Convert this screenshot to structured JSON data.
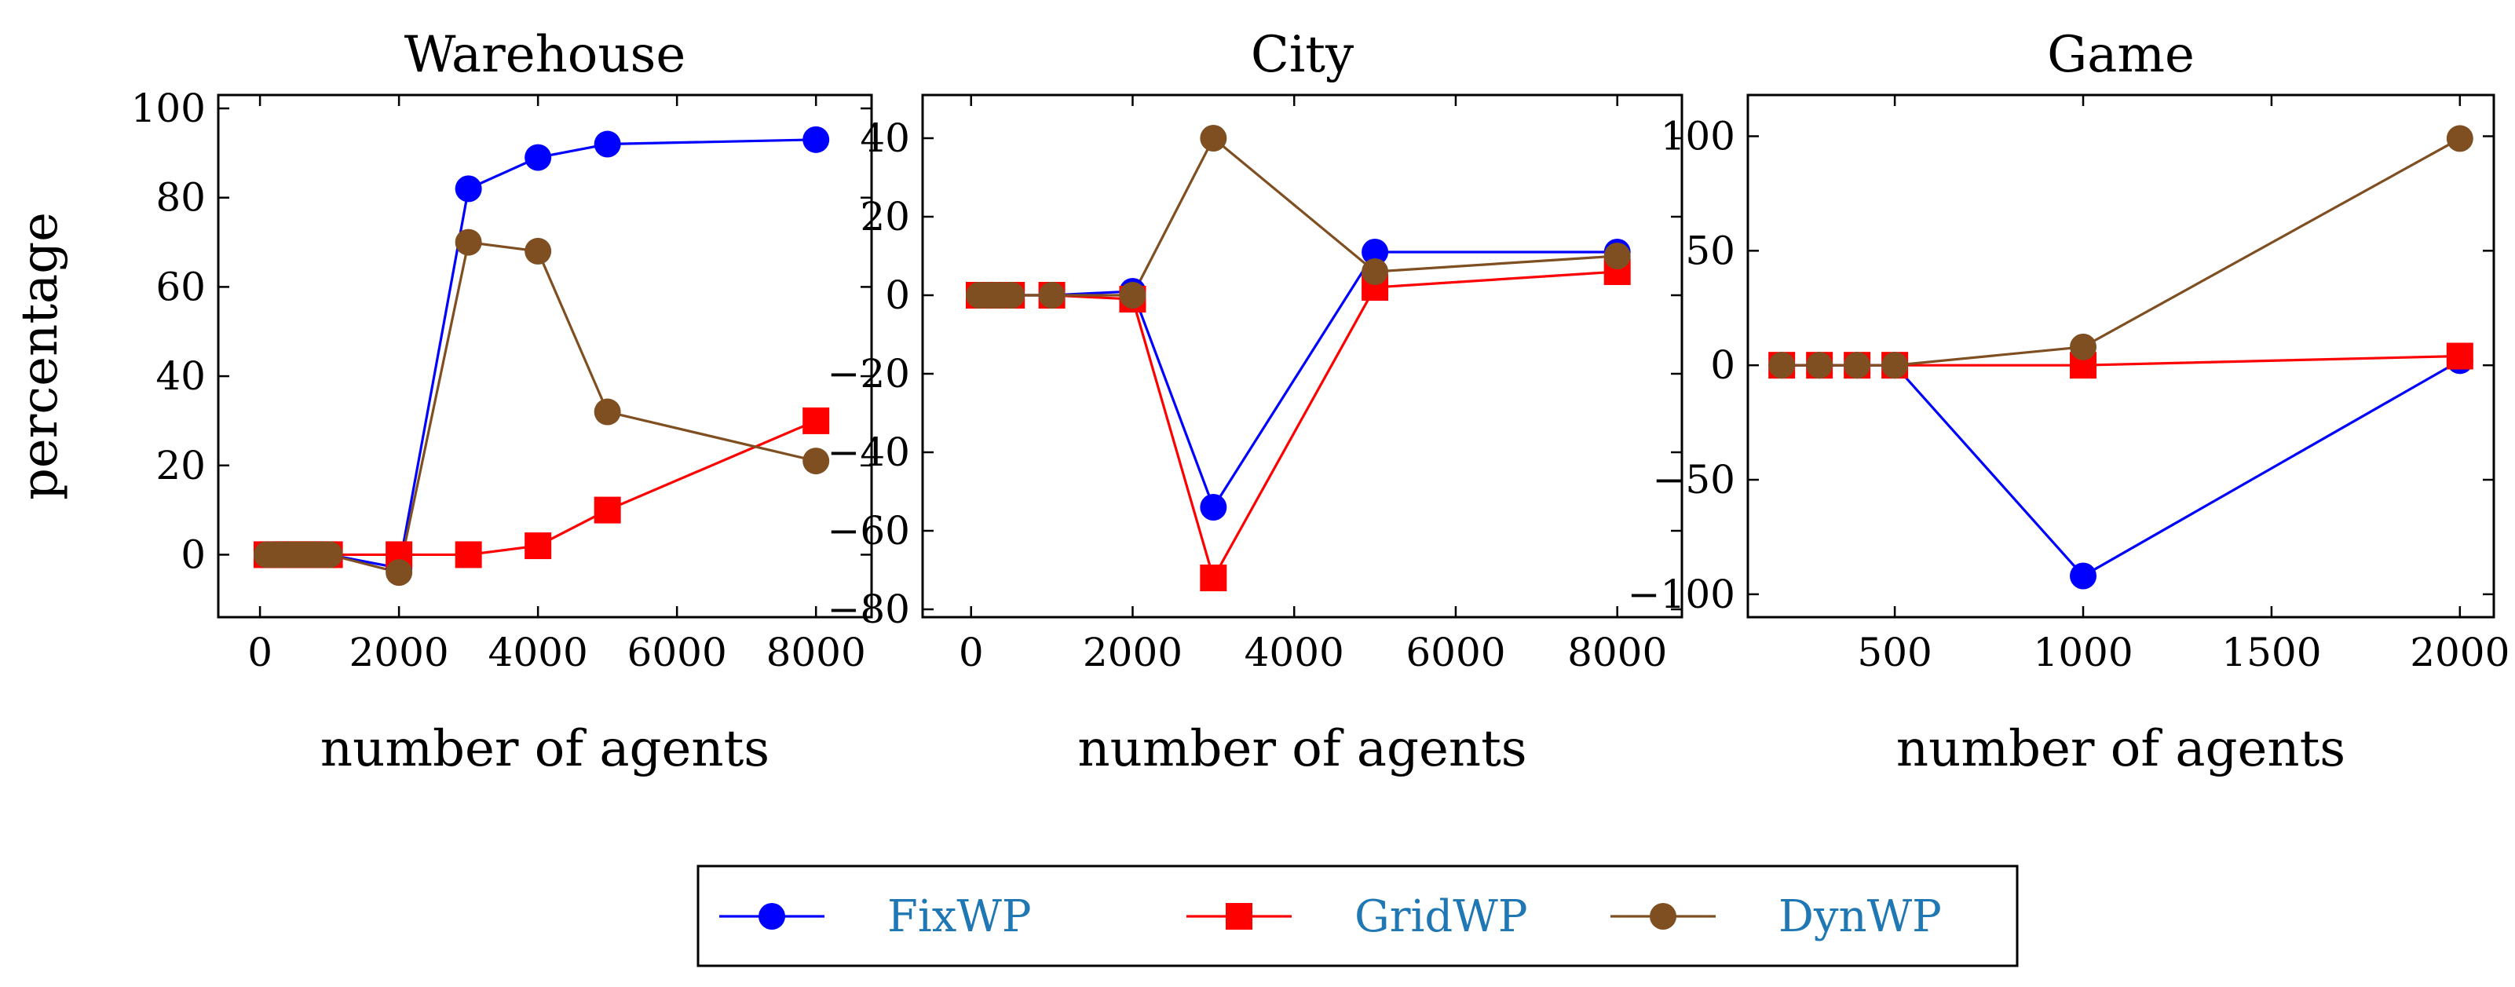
{
  "chart_data": [
    {
      "type": "line",
      "title": "Warehouse",
      "xlabel": "number of agents",
      "ylabel": "percentage",
      "xlim": [
        -600,
        8800
      ],
      "ylim": [
        -14,
        103
      ],
      "xticks": [
        0,
        2000,
        4000,
        6000,
        8000
      ],
      "yticks": [
        0,
        20,
        40,
        60,
        80,
        100
      ],
      "x": [
        100,
        200,
        300,
        400,
        500,
        600,
        700,
        800,
        900,
        1000,
        2000,
        3000,
        4000,
        5000,
        8000
      ],
      "series": [
        {
          "name": "FixWP",
          "values": [
            0,
            0,
            0,
            0,
            0,
            0,
            0,
            0,
            0,
            0,
            -3,
            82,
            89,
            92,
            93
          ]
        },
        {
          "name": "GridWP",
          "values": [
            0,
            0,
            0,
            0,
            0,
            0,
            0,
            0,
            0,
            0,
            0,
            0,
            2,
            10,
            30
          ]
        },
        {
          "name": "DynWP",
          "values": [
            0,
            0,
            0,
            0,
            0,
            0,
            0,
            0,
            0,
            0,
            -4,
            70,
            68,
            32,
            21
          ]
        }
      ]
    },
    {
      "type": "line",
      "title": "City",
      "xlabel": "number of agents",
      "ylabel": "",
      "xlim": [
        -600,
        8800
      ],
      "ylim": [
        -82,
        51
      ],
      "xticks": [
        0,
        2000,
        4000,
        6000,
        8000
      ],
      "yticks": [
        -80,
        -60,
        -40,
        -20,
        0,
        20,
        40
      ],
      "x": [
        100,
        200,
        300,
        400,
        500,
        1000,
        2000,
        3000,
        5000,
        8000
      ],
      "series": [
        {
          "name": "FixWP",
          "values": [
            0,
            0,
            0,
            0,
            0,
            0,
            1,
            -54,
            11,
            11
          ]
        },
        {
          "name": "GridWP",
          "values": [
            0,
            0,
            0,
            0,
            0,
            0,
            -1,
            -72,
            2,
            6
          ]
        },
        {
          "name": "DynWP",
          "values": [
            0,
            0,
            0,
            0,
            0,
            0,
            0,
            40,
            6,
            10
          ]
        }
      ]
    },
    {
      "type": "line",
      "title": "Game",
      "xlabel": "number of agents",
      "ylabel": "",
      "xlim": [
        110,
        2090
      ],
      "ylim": [
        -110,
        118
      ],
      "xticks": [
        500,
        1000,
        1500,
        2000
      ],
      "yticks": [
        -100,
        -50,
        0,
        50,
        100
      ],
      "x": [
        200,
        300,
        400,
        500,
        1000,
        2000
      ],
      "series": [
        {
          "name": "FixWP",
          "values": [
            0,
            0,
            0,
            0,
            -92,
            2
          ]
        },
        {
          "name": "GridWP",
          "values": [
            0,
            0,
            0,
            0,
            0,
            4
          ]
        },
        {
          "name": "DynWP",
          "values": [
            0,
            0,
            0,
            0,
            8,
            99
          ]
        }
      ]
    }
  ],
  "legend": {
    "location": "bottom-center",
    "items": [
      {
        "label": "FixWP",
        "color": "#0000ff",
        "marker": "circle"
      },
      {
        "label": "GridWP",
        "color": "#ff0000",
        "marker": "square"
      },
      {
        "label": "DynWP",
        "color": "#7f4f22",
        "marker": "circle"
      }
    ],
    "text_color": "#1f77b4"
  },
  "colors": {
    "FixWP": "#0000ff",
    "GridWP": "#ff0000",
    "DynWP": "#7f4f22"
  }
}
